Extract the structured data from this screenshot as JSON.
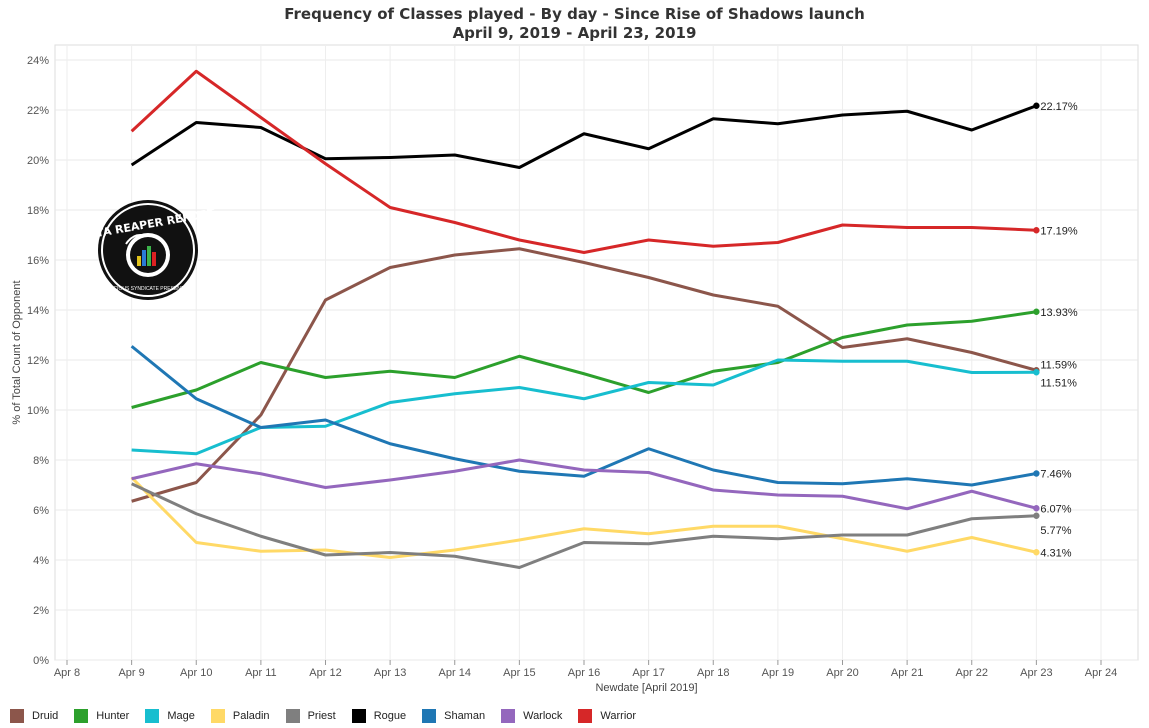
{
  "chart_data": {
    "type": "line",
    "title": "Frequency of Classes played - By day - Since Rise of Shadows launch",
    "subtitle": "April 9, 2019 - April 23, 2019",
    "xlabel": "Newdate [April 2019]",
    "ylabel": "% of Total Count of Opponent",
    "x_ticks": [
      "Apr 8",
      "Apr 9",
      "Apr 10",
      "Apr 11",
      "Apr 12",
      "Apr 13",
      "Apr 14",
      "Apr 15",
      "Apr 16",
      "Apr 17",
      "Apr 18",
      "Apr 19",
      "Apr 20",
      "Apr 21",
      "Apr 22",
      "Apr 23",
      "Apr 24"
    ],
    "y_ticks": [
      "0%",
      "2%",
      "4%",
      "6%",
      "8%",
      "10%",
      "12%",
      "14%",
      "16%",
      "18%",
      "20%",
      "22%",
      "24%"
    ],
    "ylim": [
      0,
      24.6
    ],
    "categories": [
      "Apr 9",
      "Apr 10",
      "Apr 11",
      "Apr 12",
      "Apr 13",
      "Apr 14",
      "Apr 15",
      "Apr 16",
      "Apr 17",
      "Apr 18",
      "Apr 19",
      "Apr 20",
      "Apr 21",
      "Apr 22",
      "Apr 23"
    ],
    "grid": true,
    "legend_position": "bottom",
    "series": [
      {
        "name": "Druid",
        "color": "#8c564b",
        "values": [
          6.35,
          7.1,
          9.8,
          14.4,
          15.7,
          16.2,
          16.45,
          15.9,
          15.3,
          14.6,
          14.15,
          12.5,
          12.85,
          12.3,
          11.59
        ]
      },
      {
        "name": "Hunter",
        "color": "#2ca02c",
        "values": [
          10.1,
          10.8,
          11.9,
          11.3,
          11.55,
          11.3,
          12.15,
          11.45,
          10.7,
          11.55,
          11.9,
          12.9,
          13.4,
          13.55,
          13.93
        ],
        "end_label": "13.93%"
      },
      {
        "name": "Mage",
        "color": "#17becf",
        "values": [
          8.4,
          8.25,
          9.3,
          9.35,
          10.3,
          10.65,
          10.9,
          10.45,
          11.1,
          11.0,
          12.0,
          11.95,
          11.95,
          11.5,
          11.51
        ],
        "end_label": "11.51%"
      },
      {
        "name": "Paladin",
        "color": "#ffd966",
        "values": [
          7.3,
          4.7,
          4.35,
          4.4,
          4.1,
          4.4,
          4.8,
          5.25,
          5.05,
          5.35,
          5.35,
          4.85,
          4.35,
          4.9,
          4.31
        ],
        "end_label": "4.31%"
      },
      {
        "name": "Priest",
        "color": "#7f7f7f",
        "values": [
          7.05,
          5.85,
          4.95,
          4.2,
          4.3,
          4.15,
          3.7,
          4.7,
          4.65,
          4.95,
          4.85,
          5.0,
          5.0,
          5.65,
          5.77
        ],
        "end_label": "5.77%"
      },
      {
        "name": "Rogue",
        "color": "#000000",
        "values": [
          19.8,
          21.5,
          21.3,
          20.05,
          20.1,
          20.2,
          19.7,
          21.05,
          20.45,
          21.65,
          21.45,
          21.8,
          21.95,
          21.2,
          22.17
        ],
        "end_label": "22.17%"
      },
      {
        "name": "Shaman",
        "color": "#1f77b4",
        "values": [
          12.55,
          10.45,
          9.3,
          9.6,
          8.65,
          8.05,
          7.55,
          7.35,
          8.45,
          7.6,
          7.1,
          7.05,
          7.25,
          7.0,
          7.46
        ],
        "end_label": "7.46%"
      },
      {
        "name": "Warlock",
        "color": "#9467bd",
        "values": [
          7.25,
          7.85,
          7.45,
          6.9,
          7.2,
          7.55,
          8.0,
          7.6,
          7.5,
          6.8,
          6.6,
          6.55,
          6.05,
          6.75,
          6.07
        ],
        "end_label": "6.07%"
      },
      {
        "name": "Warrior",
        "color": "#d62728",
        "values": [
          21.15,
          23.55,
          21.7,
          19.85,
          18.1,
          17.5,
          16.8,
          16.3,
          16.8,
          16.55,
          16.7,
          17.4,
          17.3,
          17.3,
          17.19
        ],
        "end_label": "17.19%"
      }
    ],
    "end_labels_extra": [
      {
        "series": "Druid",
        "text": "11.59%"
      }
    ]
  },
  "logo": {
    "text_top": "DATA REAPER REPORT",
    "text_bottom": "VICIOUS SYNDICATE PRESENTS"
  }
}
